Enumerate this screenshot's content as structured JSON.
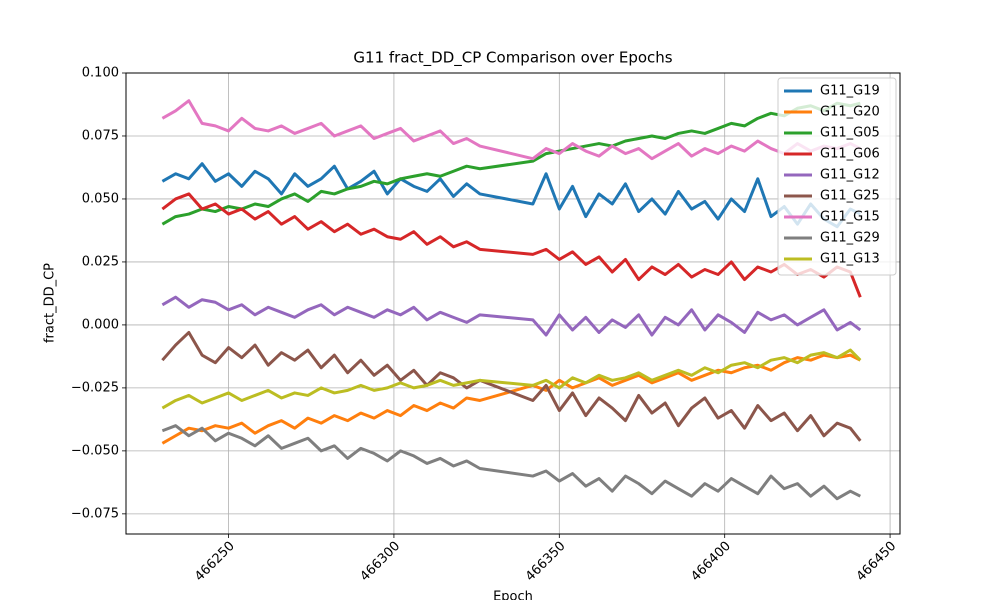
{
  "chart_data": {
    "type": "line",
    "title": "G11 fract_DD_CP Comparison over Epochs",
    "x_label": "Epoch",
    "y_label": "fract_DD_CP",
    "grid": true,
    "legend": "upper right",
    "xlim": [
      466219,
      466453
    ],
    "ylim": [
      -0.083,
      0.1
    ],
    "xticks": [
      466250,
      466300,
      466350,
      466400,
      466450
    ],
    "yticks": [
      {
        "value": -0.075,
        "label": "−0.075"
      },
      {
        "value": -0.05,
        "label": "−0.050"
      },
      {
        "value": -0.025,
        "label": "−0.025"
      },
      {
        "value": 0,
        "label": "0.000"
      },
      {
        "value": 0.025,
        "label": "0.025"
      },
      {
        "value": 0.05,
        "label": "0.050"
      },
      {
        "value": 0.075,
        "label": "0.075"
      },
      {
        "value": 0.1,
        "label": "0.100"
      }
    ],
    "x": [
      466230,
      466234,
      466238,
      466242,
      466246,
      466250,
      466254,
      466258,
      466262,
      466266,
      466270,
      466274,
      466278,
      466282,
      466286,
      466290,
      466294,
      466298,
      466302,
      466306,
      466310,
      466314,
      466318,
      466322,
      466326,
      466342,
      466346,
      466350,
      466354,
      466358,
      466362,
      466366,
      466370,
      466374,
      466378,
      466382,
      466386,
      466390,
      466394,
      466398,
      466402,
      466406,
      466410,
      466414,
      466418,
      466422,
      466426,
      466430,
      466434,
      466438,
      466441
    ],
    "series": [
      {
        "name": "G11_G19",
        "color": "#1f77b4",
        "values": [
          0.057,
          0.06,
          0.058,
          0.064,
          0.057,
          0.06,
          0.055,
          0.061,
          0.058,
          0.052,
          0.06,
          0.055,
          0.058,
          0.063,
          0.054,
          0.057,
          0.061,
          0.052,
          0.058,
          0.055,
          0.053,
          0.058,
          0.051,
          0.056,
          0.052,
          0.048,
          0.06,
          0.046,
          0.055,
          0.043,
          0.052,
          0.048,
          0.056,
          0.045,
          0.05,
          0.044,
          0.053,
          0.046,
          0.049,
          0.042,
          0.05,
          0.045,
          0.058,
          0.043,
          0.047,
          0.04,
          0.048,
          0.042,
          0.039,
          0.046,
          0.044
        ]
      },
      {
        "name": "G11_G20",
        "color": "#ff7f0e",
        "values": [
          -0.047,
          -0.044,
          -0.041,
          -0.042,
          -0.04,
          -0.041,
          -0.039,
          -0.043,
          -0.04,
          -0.038,
          -0.041,
          -0.037,
          -0.039,
          -0.036,
          -0.038,
          -0.035,
          -0.037,
          -0.034,
          -0.036,
          -0.032,
          -0.034,
          -0.031,
          -0.033,
          -0.029,
          -0.03,
          -0.024,
          -0.026,
          -0.022,
          -0.025,
          -0.023,
          -0.021,
          -0.024,
          -0.022,
          -0.02,
          -0.023,
          -0.021,
          -0.019,
          -0.022,
          -0.02,
          -0.018,
          -0.019,
          -0.017,
          -0.016,
          -0.018,
          -0.015,
          -0.013,
          -0.014,
          -0.012,
          -0.013,
          -0.012,
          -0.014
        ]
      },
      {
        "name": "G11_G05",
        "color": "#2ca02c",
        "values": [
          0.04,
          0.043,
          0.044,
          0.046,
          0.045,
          0.047,
          0.046,
          0.048,
          0.047,
          0.05,
          0.052,
          0.049,
          0.053,
          0.052,
          0.054,
          0.055,
          0.057,
          0.056,
          0.058,
          0.059,
          0.06,
          0.059,
          0.061,
          0.063,
          0.062,
          0.065,
          0.068,
          0.069,
          0.07,
          0.071,
          0.072,
          0.071,
          0.073,
          0.074,
          0.075,
          0.074,
          0.076,
          0.077,
          0.076,
          0.078,
          0.08,
          0.079,
          0.082,
          0.084,
          0.083,
          0.086,
          0.087,
          0.085,
          0.088,
          0.087,
          0.088
        ]
      },
      {
        "name": "G11_G06",
        "color": "#d62728",
        "values": [
          0.046,
          0.05,
          0.052,
          0.046,
          0.048,
          0.044,
          0.046,
          0.042,
          0.045,
          0.04,
          0.043,
          0.038,
          0.041,
          0.037,
          0.04,
          0.036,
          0.038,
          0.035,
          0.034,
          0.037,
          0.032,
          0.035,
          0.031,
          0.033,
          0.03,
          0.028,
          0.03,
          0.026,
          0.029,
          0.024,
          0.027,
          0.021,
          0.026,
          0.018,
          0.023,
          0.02,
          0.024,
          0.019,
          0.022,
          0.02,
          0.025,
          0.018,
          0.023,
          0.021,
          0.024,
          0.02,
          0.022,
          0.019,
          0.023,
          0.021,
          0.011
        ]
      },
      {
        "name": "G11_G12",
        "color": "#9467bd",
        "values": [
          0.008,
          0.011,
          0.007,
          0.01,
          0.009,
          0.006,
          0.008,
          0.004,
          0.007,
          0.005,
          0.003,
          0.006,
          0.008,
          0.004,
          0.007,
          0.005,
          0.003,
          0.006,
          0.004,
          0.007,
          0.002,
          0.005,
          0.003,
          0.001,
          0.004,
          0.002,
          -0.004,
          0.004,
          -0.002,
          0.003,
          -0.003,
          0.002,
          -0.001,
          0.004,
          -0.004,
          0.003,
          0.0,
          0.006,
          -0.002,
          0.004,
          0.001,
          -0.003,
          0.005,
          0.002,
          0.004,
          0.0,
          0.003,
          0.006,
          -0.002,
          0.001,
          -0.002
        ]
      },
      {
        "name": "G11_G25",
        "color": "#8c564b",
        "values": [
          -0.014,
          -0.008,
          -0.003,
          -0.012,
          -0.015,
          -0.009,
          -0.013,
          -0.008,
          -0.016,
          -0.011,
          -0.014,
          -0.01,
          -0.017,
          -0.012,
          -0.019,
          -0.014,
          -0.02,
          -0.016,
          -0.022,
          -0.018,
          -0.024,
          -0.019,
          -0.021,
          -0.025,
          -0.022,
          -0.03,
          -0.024,
          -0.034,
          -0.027,
          -0.036,
          -0.029,
          -0.033,
          -0.038,
          -0.028,
          -0.035,
          -0.031,
          -0.04,
          -0.033,
          -0.029,
          -0.037,
          -0.034,
          -0.041,
          -0.032,
          -0.038,
          -0.035,
          -0.042,
          -0.036,
          -0.044,
          -0.039,
          -0.041,
          -0.046
        ]
      },
      {
        "name": "G11_G15",
        "color": "#e377c2",
        "values": [
          0.082,
          0.085,
          0.089,
          0.08,
          0.079,
          0.077,
          0.082,
          0.078,
          0.077,
          0.079,
          0.076,
          0.078,
          0.08,
          0.075,
          0.077,
          0.079,
          0.074,
          0.076,
          0.078,
          0.073,
          0.075,
          0.077,
          0.072,
          0.074,
          0.071,
          0.066,
          0.07,
          0.068,
          0.072,
          0.069,
          0.067,
          0.071,
          0.068,
          0.07,
          0.066,
          0.069,
          0.072,
          0.067,
          0.07,
          0.068,
          0.071,
          0.069,
          0.073,
          0.07,
          0.068,
          0.072,
          0.069,
          0.071,
          0.07,
          0.072,
          0.07
        ]
      },
      {
        "name": "G11_G29",
        "color": "#7f7f7f",
        "values": [
          -0.042,
          -0.04,
          -0.044,
          -0.041,
          -0.046,
          -0.043,
          -0.045,
          -0.048,
          -0.044,
          -0.049,
          -0.047,
          -0.045,
          -0.05,
          -0.048,
          -0.053,
          -0.049,
          -0.051,
          -0.054,
          -0.05,
          -0.052,
          -0.055,
          -0.053,
          -0.056,
          -0.054,
          -0.057,
          -0.06,
          -0.058,
          -0.062,
          -0.059,
          -0.064,
          -0.061,
          -0.066,
          -0.06,
          -0.063,
          -0.067,
          -0.062,
          -0.065,
          -0.068,
          -0.063,
          -0.066,
          -0.061,
          -0.064,
          -0.067,
          -0.06,
          -0.065,
          -0.063,
          -0.068,
          -0.064,
          -0.069,
          -0.066,
          -0.068
        ]
      },
      {
        "name": "G11_G13",
        "color": "#bcbd22",
        "values": [
          -0.033,
          -0.03,
          -0.028,
          -0.031,
          -0.029,
          -0.027,
          -0.03,
          -0.028,
          -0.026,
          -0.029,
          -0.027,
          -0.028,
          -0.025,
          -0.027,
          -0.026,
          -0.024,
          -0.026,
          -0.025,
          -0.023,
          -0.025,
          -0.024,
          -0.022,
          -0.024,
          -0.023,
          -0.022,
          -0.024,
          -0.022,
          -0.025,
          -0.021,
          -0.023,
          -0.02,
          -0.022,
          -0.021,
          -0.019,
          -0.022,
          -0.02,
          -0.018,
          -0.02,
          -0.017,
          -0.019,
          -0.016,
          -0.015,
          -0.017,
          -0.014,
          -0.013,
          -0.015,
          -0.012,
          -0.011,
          -0.013,
          -0.01,
          -0.014
        ]
      }
    ]
  }
}
